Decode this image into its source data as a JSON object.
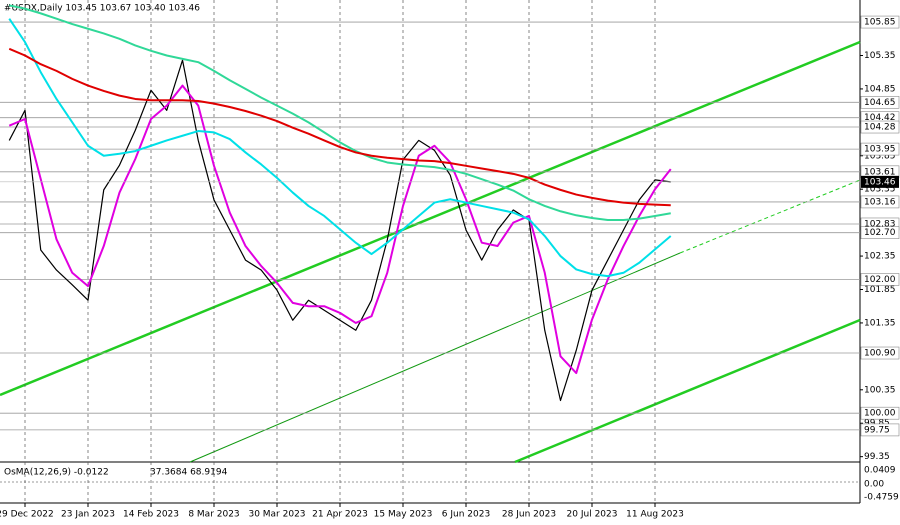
{
  "chart_data": {
    "type": "line",
    "title": "#USDX,Daily  103.45 103.67 103.40 103.46",
    "categories": [
      null,
      "29 Dec 2022",
      null,
      null,
      null,
      "23 Jan 2023",
      null,
      null,
      null,
      "14 Feb 2023",
      null,
      null,
      null,
      "8 Mar 2023",
      null,
      null,
      null,
      "30 Mar 2023",
      null,
      null,
      null,
      "21 Apr 2023",
      null,
      null,
      null,
      "15 May 2023",
      null,
      null,
      null,
      "6 Jun 2023",
      null,
      null,
      null,
      "28 Jun 2023",
      null,
      null,
      null,
      "20 Jul 2023",
      null,
      null,
      null,
      "11 Aug 2023",
      null
    ],
    "series": [
      {
        "color": "#000000",
        "values": [
          104.08,
          104.53,
          102.44,
          102.14,
          101.92,
          101.69,
          103.34,
          103.71,
          104.23,
          104.83,
          104.53,
          105.28,
          104.08,
          103.19,
          102.74,
          102.29,
          102.14,
          101.84,
          101.39,
          101.69,
          101.54,
          101.39,
          101.24,
          101.69,
          102.59,
          103.79,
          104.08,
          103.93,
          103.56,
          102.74,
          102.29,
          102.74,
          103.04,
          102.89,
          101.24,
          100.19,
          100.94,
          101.84,
          102.29,
          102.74,
          103.19,
          103.49,
          103.46
        ]
      },
      {
        "color": "#e000e0",
        "values": [
          104.3,
          104.4,
          103.5,
          102.6,
          102.1,
          101.9,
          102.5,
          103.3,
          103.8,
          104.4,
          104.6,
          104.9,
          104.6,
          103.7,
          103.0,
          102.5,
          102.2,
          101.95,
          101.65,
          101.6,
          101.6,
          101.5,
          101.35,
          101.45,
          102.1,
          103.1,
          103.85,
          104.0,
          103.75,
          103.2,
          102.55,
          102.5,
          102.85,
          102.95,
          102.1,
          100.85,
          100.6,
          101.4,
          102.0,
          102.5,
          102.95,
          103.35,
          103.65
        ]
      },
      {
        "color": "#00e0e8",
        "values": [
          105.9,
          105.55,
          105.1,
          104.7,
          104.35,
          104.0,
          103.85,
          103.88,
          103.92,
          104.0,
          104.08,
          104.15,
          104.22,
          104.2,
          104.1,
          103.9,
          103.72,
          103.52,
          103.3,
          103.1,
          102.95,
          102.75,
          102.55,
          102.38,
          102.55,
          102.75,
          102.95,
          103.15,
          103.2,
          103.15,
          103.1,
          103.05,
          103.0,
          102.9,
          102.65,
          102.35,
          102.15,
          102.08,
          102.05,
          102.1,
          102.25,
          102.45,
          102.65
        ]
      },
      {
        "color": "#30d898",
        "values": [
          106.1,
          106.05,
          105.98,
          105.9,
          105.82,
          105.75,
          105.68,
          105.6,
          105.5,
          105.42,
          105.35,
          105.3,
          105.25,
          105.12,
          104.98,
          104.85,
          104.72,
          104.6,
          104.48,
          104.35,
          104.2,
          104.05,
          103.92,
          103.82,
          103.75,
          103.72,
          103.7,
          103.68,
          103.64,
          103.58,
          103.5,
          103.42,
          103.33,
          103.2,
          103.1,
          103.02,
          102.96,
          102.92,
          102.89,
          102.89,
          102.91,
          102.95,
          102.99
        ]
      },
      {
        "color": "#e00000",
        "values": [
          105.45,
          105.35,
          105.22,
          105.12,
          105.0,
          104.9,
          104.82,
          104.75,
          104.7,
          104.68,
          104.68,
          104.68,
          104.67,
          104.63,
          104.58,
          104.52,
          104.45,
          104.37,
          104.27,
          104.18,
          104.08,
          103.98,
          103.9,
          103.85,
          103.82,
          103.8,
          103.78,
          103.77,
          103.74,
          103.7,
          103.66,
          103.62,
          103.58,
          103.52,
          103.42,
          103.34,
          103.27,
          103.22,
          103.18,
          103.15,
          103.13,
          103.12,
          103.11
        ]
      }
    ],
    "ylim": [
      99.27,
      106.18
    ],
    "yticks": [
      105.35,
      104.85,
      103.85,
      103.35,
      102.35,
      101.85,
      101.35,
      100.35,
      99.85,
      99.35
    ],
    "levels": [
      105.85,
      104.65,
      104.42,
      104.28,
      103.95,
      103.61,
      103.16,
      102.83,
      {
        "value": 102.7,
        "label": "102.70"
      },
      {
        "value": 102,
        "label": "102.00"
      },
      {
        "value": 100.9,
        "label": "100.90"
      },
      {
        "value": 100,
        "label": "100.00"
      },
      99.75
    ],
    "last_price": 103.46,
    "indicator": {
      "title": "OsMA(12,26,9) -0.0122",
      "readout": "37.3684 68.9194",
      "ticks": [
        "0.0409",
        "0.00",
        "-0.4759"
      ]
    }
  }
}
